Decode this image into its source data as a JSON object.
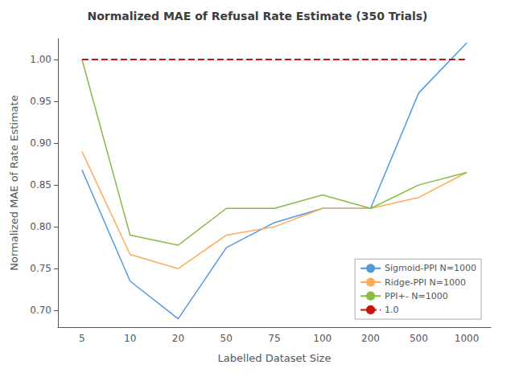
{
  "chart_data": {
    "type": "line",
    "title": "Normalized MAE of Refusal Rate Estimate (350 Trials)",
    "x_label": "Labelled Dataset Size",
    "y_label": "Normalized MAE of Rate Estimate",
    "categories": [
      "5",
      "10",
      "20",
      "50",
      "75",
      "100",
      "200",
      "500",
      "1000"
    ],
    "series": [
      {
        "name": "Sigmoid-PPI N=1000",
        "color": "#5599dd",
        "values": [
          0.868,
          0.735,
          0.69,
          0.775,
          0.805,
          0.822,
          0.822,
          0.96,
          1.02
        ]
      },
      {
        "name": "Ridge-PPI N=1000",
        "color": "#ffaa55",
        "values": [
          0.89,
          0.767,
          0.75,
          0.79,
          0.8,
          0.822,
          0.822,
          0.835,
          0.865
        ]
      },
      {
        "name": "PPI+- N=1000",
        "color": "#88bb44",
        "values": [
          1.0,
          0.79,
          0.778,
          0.822,
          0.822,
          0.838,
          0.822,
          0.85,
          0.865
        ]
      },
      {
        "name": "1.0",
        "color": "#cc1111",
        "line_style": "dashed",
        "values": [
          1.0,
          1.0,
          1.0,
          1.0,
          1.0,
          1.0,
          1.0,
          1.0,
          1.0
        ]
      }
    ],
    "ylim": [
      0.68,
      1.025
    ],
    "yticks": [
      {
        "value": 0.7,
        "label": "0.70"
      },
      0.75,
      {
        "value": 0.8,
        "label": "0.80"
      },
      0.85,
      {
        "value": 0.9,
        "label": "0.90"
      },
      0.95,
      {
        "value": 1.0,
        "label": "1.00"
      }
    ],
    "grid": false,
    "legend": "lower right"
  }
}
